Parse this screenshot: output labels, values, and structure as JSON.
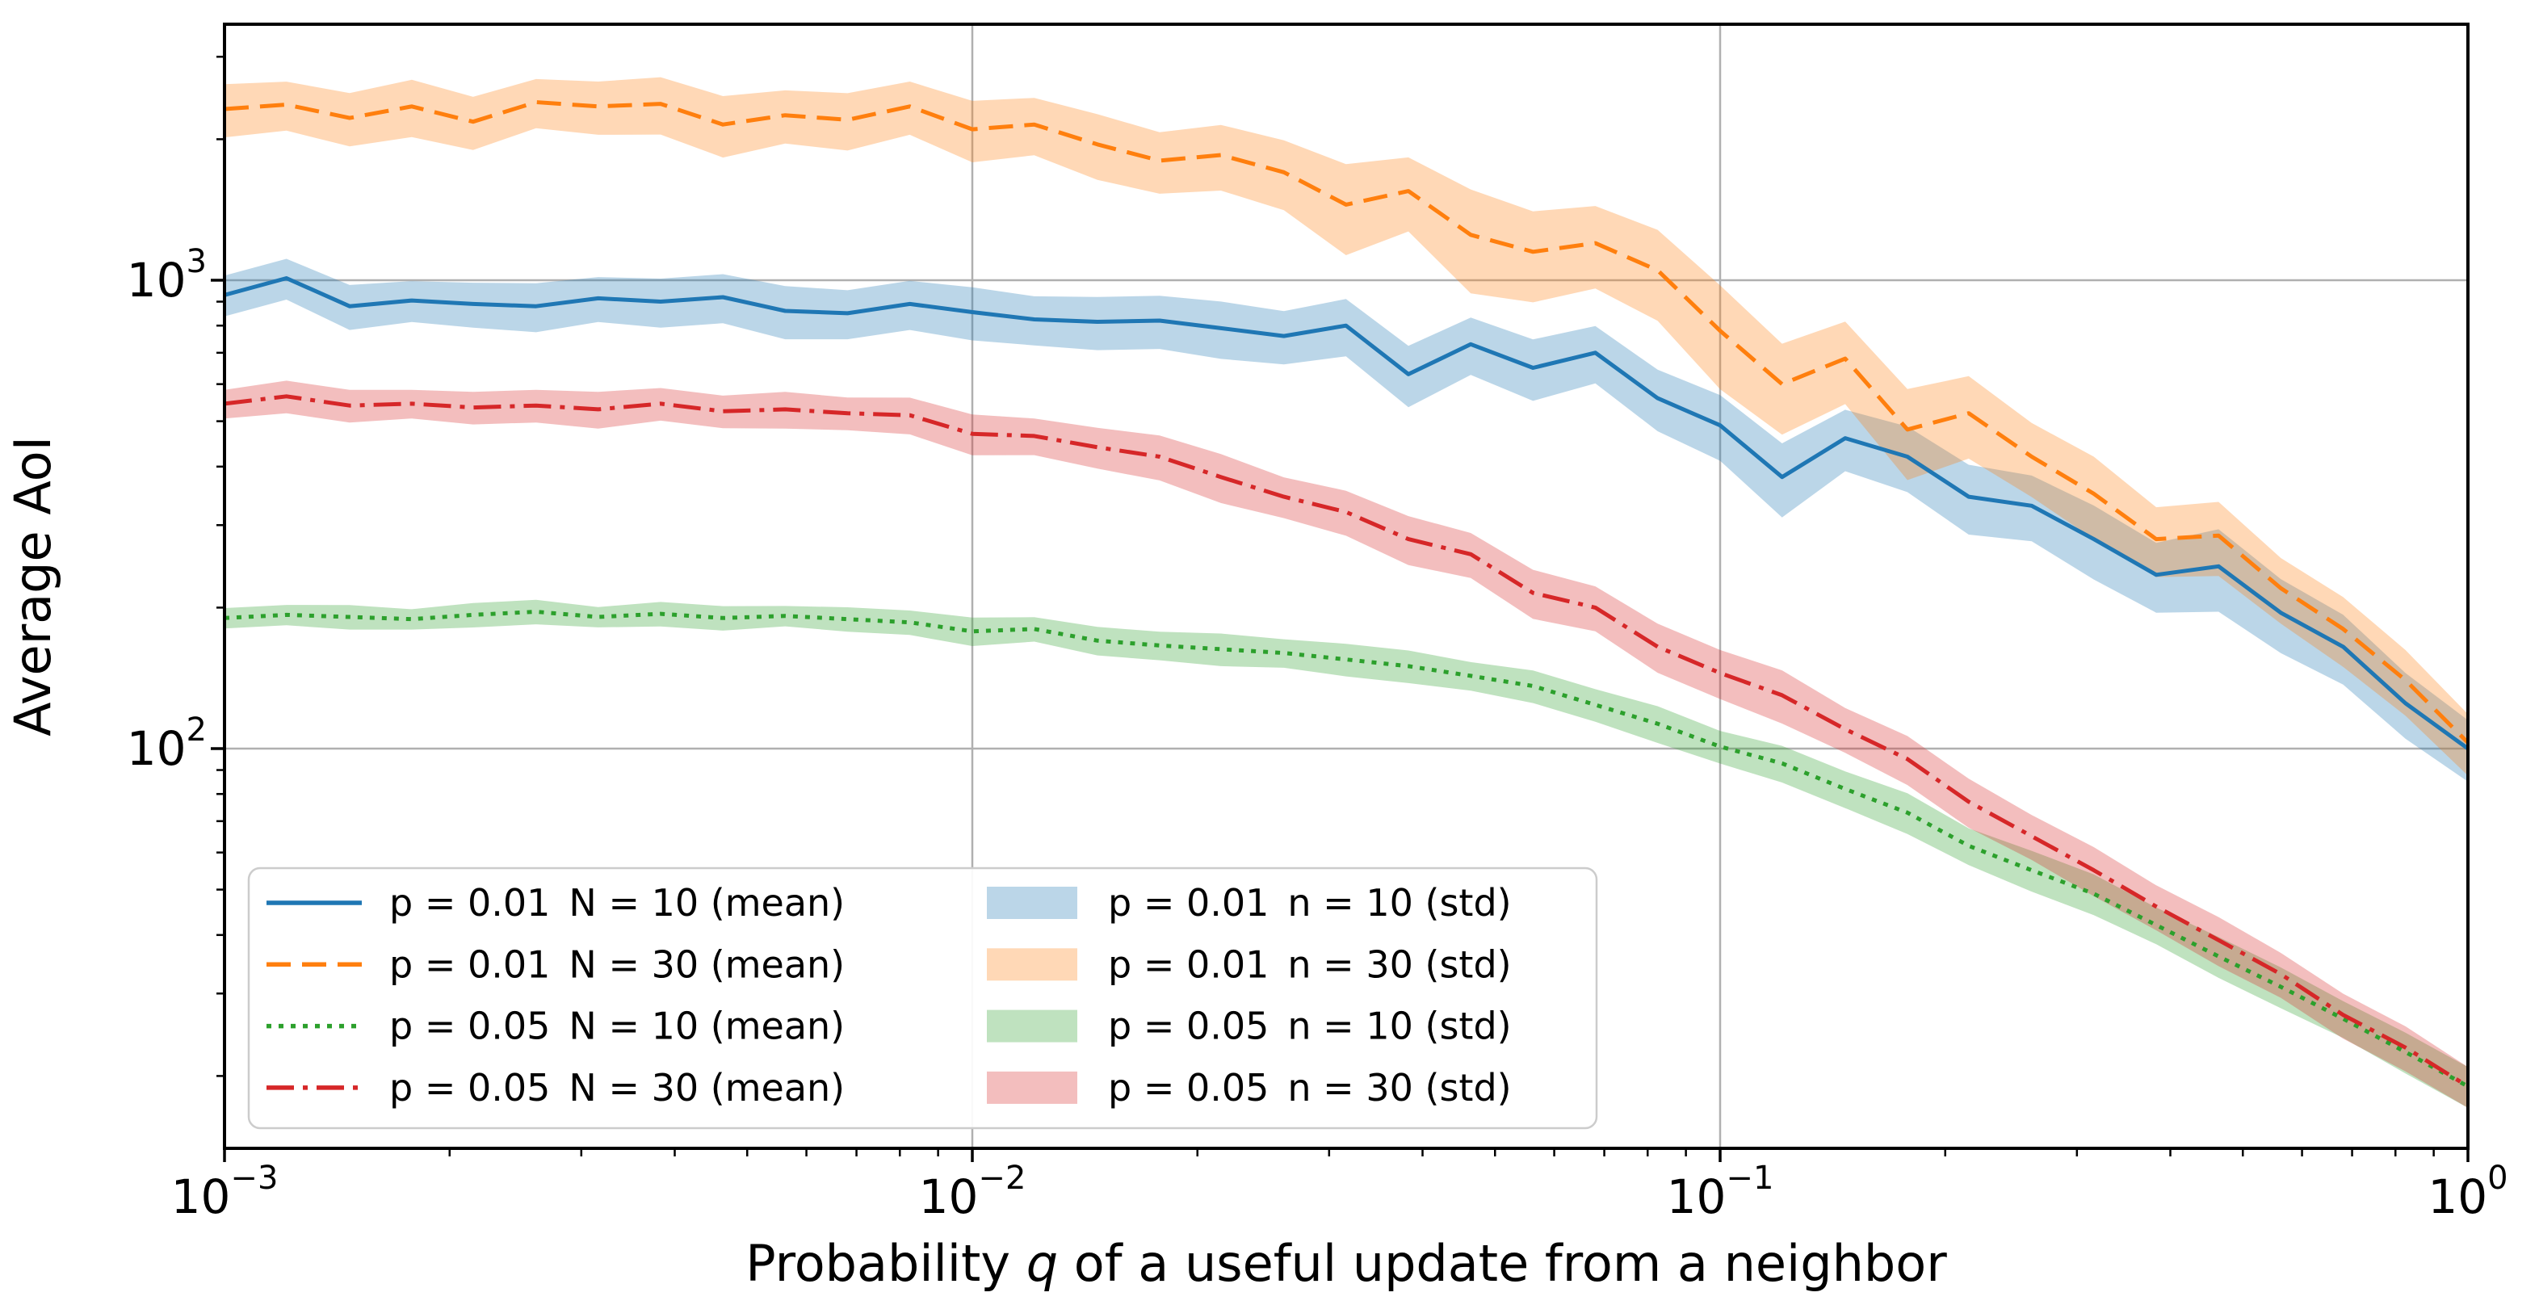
{
  "chart_data": {
    "type": "line",
    "x_scale": "log",
    "y_scale": "log",
    "xlabel": "Probability q of a useful update from a neighbor",
    "xlabel_parts": [
      "Probability ",
      "q",
      " of a useful update from a neighbor"
    ],
    "ylabel": "Average AoI",
    "xlim": [
      0.001,
      1.0
    ],
    "ylim": [
      14,
      3500
    ],
    "grid": true,
    "legend_position": "lower left",
    "colors": {
      "blue": "#1f77b4",
      "orange": "#ff7f0e",
      "green": "#2ca02c",
      "red": "#d62728",
      "grid": "#b0b0b0",
      "legend_border": "#cccccc",
      "axis": "#000000"
    },
    "x_ticks": [
      {
        "base": "10",
        "exp": "−3",
        "value": 0.001
      },
      {
        "base": "10",
        "exp": "−2",
        "value": 0.01
      },
      {
        "base": "10",
        "exp": "−1",
        "value": 0.1
      },
      {
        "base": "10",
        "exp": "0",
        "value": 1
      }
    ],
    "y_ticks": [
      {
        "base": "10",
        "exp": "3",
        "value": 1000
      },
      {
        "base": "10",
        "exp": "2",
        "value": 100
      }
    ],
    "x": [
      0.001,
      0.00121,
      0.00147,
      0.00178,
      0.00215,
      0.00261,
      0.00316,
      0.00383,
      0.00464,
      0.00562,
      0.00681,
      0.00825,
      0.01,
      0.0121,
      0.0147,
      0.0178,
      0.0215,
      0.0261,
      0.0316,
      0.0383,
      0.0464,
      0.0562,
      0.0681,
      0.0825,
      0.1,
      0.121,
      0.147,
      0.178,
      0.215,
      0.261,
      0.316,
      0.383,
      0.464,
      0.562,
      0.681,
      0.825,
      1.0
    ],
    "series": [
      {
        "name": "p = 0.01 N = 10 (mean)",
        "band_name": "p = 0.01 n = 10 (std)",
        "color": "#1f77b4",
        "style": "solid",
        "values": [
          930,
          1010,
          880,
          905,
          890,
          880,
          915,
          900,
          920,
          860,
          850,
          890,
          855,
          825,
          815,
          820,
          790,
          760,
          800,
          630,
          730,
          650,
          700,
          560,
          490,
          380,
          460,
          420,
          345,
          330,
          280,
          235,
          245,
          195,
          165,
          125,
          100
        ],
        "std_frac": [
          0.1,
          0.1,
          0.11,
          0.1,
          0.11,
          0.12,
          0.11,
          0.12,
          0.12,
          0.13,
          0.12,
          0.12,
          0.13,
          0.12,
          0.13,
          0.13,
          0.14,
          0.13,
          0.14,
          0.15,
          0.14,
          0.15,
          0.14,
          0.15,
          0.16,
          0.18,
          0.15,
          0.16,
          0.17,
          0.16,
          0.18,
          0.17,
          0.2,
          0.18,
          0.17,
          0.16,
          0.15
        ]
      },
      {
        "name": "p = 0.01 N = 30 (mean)",
        "band_name": "p = 0.01 n = 30 (std)",
        "color": "#ff7f0e",
        "style": "dashed",
        "values": [
          2320,
          2370,
          2220,
          2350,
          2180,
          2400,
          2350,
          2380,
          2150,
          2250,
          2200,
          2350,
          2100,
          2150,
          1950,
          1800,
          1850,
          1700,
          1450,
          1550,
          1250,
          1150,
          1200,
          1050,
          780,
          600,
          680,
          480,
          520,
          420,
          350,
          280,
          285,
          220,
          180,
          140,
          103
        ],
        "std_frac": [
          0.13,
          0.12,
          0.13,
          0.14,
          0.13,
          0.12,
          0.13,
          0.14,
          0.15,
          0.13,
          0.14,
          0.13,
          0.15,
          0.14,
          0.16,
          0.15,
          0.16,
          0.17,
          0.22,
          0.18,
          0.25,
          0.22,
          0.2,
          0.22,
          0.25,
          0.22,
          0.2,
          0.22,
          0.2,
          0.18,
          0.2,
          0.17,
          0.18,
          0.16,
          0.17,
          0.16,
          0.15
        ]
      },
      {
        "name": "p = 0.05 N = 10 (mean)",
        "band_name": "p = 0.05 n = 10 (std)",
        "color": "#2ca02c",
        "style": "dotted",
        "values": [
          190,
          193,
          191,
          189,
          193,
          196,
          191,
          194,
          190,
          192,
          189,
          186,
          178,
          180,
          170,
          166,
          163,
          160,
          155,
          150,
          143,
          136,
          124,
          113,
          101,
          93,
          82,
          73,
          62,
          55,
          49,
          42,
          36,
          31,
          26.5,
          22.5,
          19
        ],
        "std_frac": [
          0.05,
          0.05,
          0.06,
          0.05,
          0.06,
          0.06,
          0.05,
          0.06,
          0.06,
          0.05,
          0.06,
          0.06,
          0.07,
          0.06,
          0.07,
          0.07,
          0.08,
          0.07,
          0.08,
          0.08,
          0.07,
          0.08,
          0.08,
          0.09,
          0.08,
          0.09,
          0.09,
          0.1,
          0.09,
          0.1,
          0.1,
          0.09,
          0.1,
          0.1,
          0.09,
          0.1,
          0.1
        ]
      },
      {
        "name": "p = 0.05 N = 30 (mean)",
        "band_name": "p = 0.05 n = 30 (std)",
        "color": "#d62728",
        "style": "dashdot",
        "values": [
          545,
          565,
          540,
          545,
          535,
          540,
          530,
          545,
          525,
          530,
          520,
          515,
          470,
          465,
          440,
          420,
          380,
          345,
          320,
          280,
          260,
          215,
          200,
          165,
          145,
          130,
          110,
          95,
          77,
          65,
          55,
          46,
          39,
          33,
          27,
          23,
          19
        ],
        "std_frac": [
          0.07,
          0.08,
          0.08,
          0.07,
          0.08,
          0.08,
          0.09,
          0.08,
          0.08,
          0.09,
          0.08,
          0.09,
          0.1,
          0.09,
          0.1,
          0.11,
          0.12,
          0.1,
          0.11,
          0.12,
          0.11,
          0.12,
          0.11,
          0.12,
          0.12,
          0.13,
          0.11,
          0.12,
          0.12,
          0.11,
          0.12,
          0.11,
          0.12,
          0.11,
          0.11,
          0.11,
          0.1
        ]
      }
    ]
  }
}
